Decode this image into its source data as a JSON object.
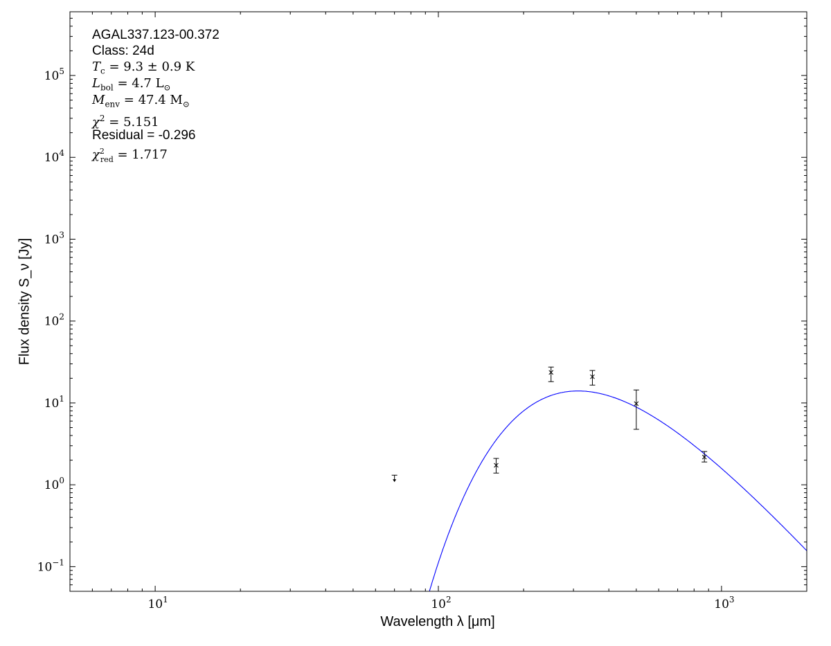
{
  "chart_data": {
    "type": "scatter",
    "xlabel": "Wavelength λ [μm]",
    "ylabel": "Flux density S_ν [Jy]",
    "xscale": "log",
    "yscale": "log",
    "xlim": [
      5,
      2000
    ],
    "ylim": [
      0.05,
      600000
    ],
    "grid": false,
    "x_ticks": [
      10,
      100,
      1000
    ],
    "x_tick_labels": [
      {
        "base": "10",
        "exp": "1"
      },
      {
        "base": "10",
        "exp": "2"
      },
      {
        "base": "10",
        "exp": "3"
      }
    ],
    "y_ticks": [
      0.1,
      1,
      10,
      100,
      1000,
      10000,
      100000
    ],
    "y_tick_labels": [
      {
        "base": "10",
        "exp": "−1"
      },
      {
        "base": "10",
        "exp": "0"
      },
      {
        "base": "10",
        "exp": "1"
      },
      {
        "base": "10",
        "exp": "2"
      },
      {
        "base": "10",
        "exp": "3"
      },
      {
        "base": "10",
        "exp": "4"
      },
      {
        "base": "10",
        "exp": "5"
      }
    ],
    "points": [
      {
        "x": 160,
        "y": 1.73,
        "err_low": 1.39,
        "err_high": 2.1
      },
      {
        "x": 250,
        "y": 23.6,
        "err_low": 18.2,
        "err_high": 27.4
      },
      {
        "x": 350,
        "y": 20.9,
        "err_low": 16.5,
        "err_high": 24.9
      },
      {
        "x": 500,
        "y": 9.8,
        "err_low": 4.76,
        "err_high": 14.4
      },
      {
        "x": 870,
        "y": 2.18,
        "err_low": 1.9,
        "err_high": 2.55
      }
    ],
    "upper_limits": [
      {
        "x": 70,
        "y": 1.31
      }
    ],
    "model_curve": {
      "type": "greybody",
      "temperature_K": 9.3,
      "peak_flux_Jy": 14,
      "color": "#0000ff"
    },
    "point_color": "#000000",
    "annotations": {
      "source": "AGAL337.123-00.372",
      "class": "Class: 24d",
      "tc": "= 9.3 ± 0.9 K",
      "lbol": "= 4.7 L",
      "menv": "= 47.4 M",
      "chi2": "= 5.151",
      "residual": "Residual = -0.296",
      "chi2red": "= 1.717"
    }
  }
}
